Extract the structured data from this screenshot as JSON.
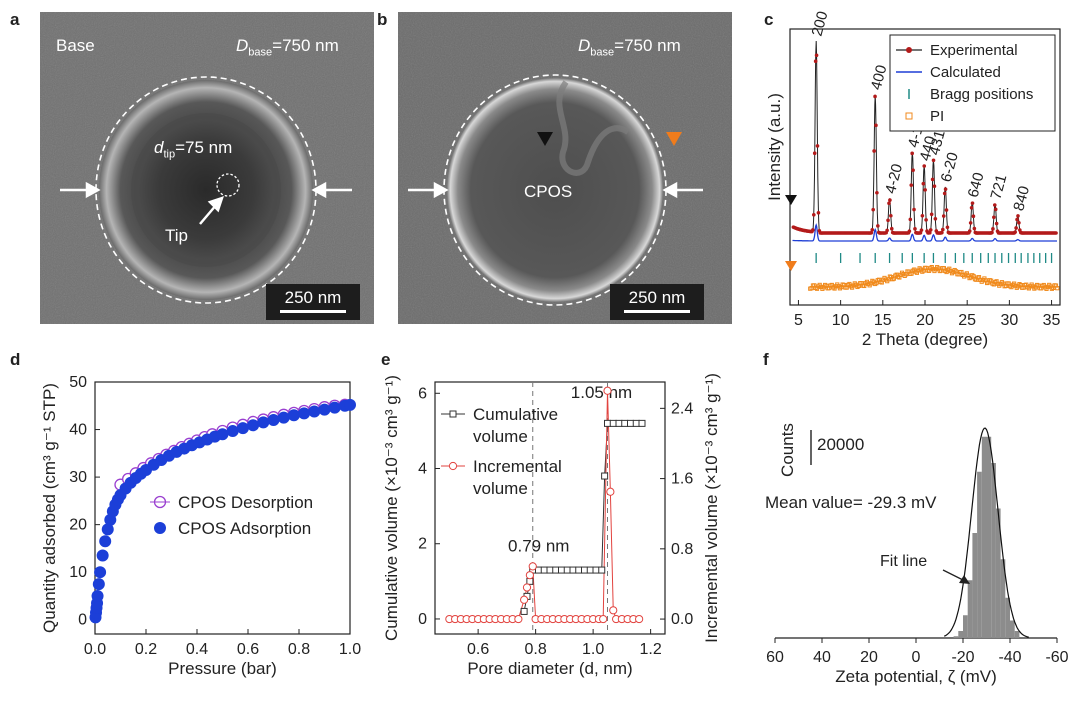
{
  "panels": {
    "a": {
      "letter": "a",
      "label_base": "Base",
      "dbase_sym": "D",
      "dbase_sub": "base",
      "dbase_val": "=750 nm",
      "dtip_sym": "d",
      "dtip_sub": "tip",
      "dtip_val": "=75 nm",
      "tip_label": "Tip",
      "scalebar": "250 nm"
    },
    "b": {
      "letter": "b",
      "dbase_sym": "D",
      "dbase_sub": "base",
      "dbase_val": "=750 nm",
      "cpos_label": "CPOS",
      "scalebar": "250 nm"
    },
    "c": {
      "letter": "c"
    },
    "d": {
      "letter": "d"
    },
    "e": {
      "letter": "e"
    },
    "f": {
      "letter": "f"
    }
  },
  "colors": {
    "xrd_exp": "#b31a1a",
    "xrd_calc": "#1f3fd6",
    "bragg": "#1f8a86",
    "pi": "#f08a1c",
    "desorption": "#9a3fd0",
    "adsorption": "#1c3fd8",
    "cumulative": "#333333",
    "incremental": "#e2433f",
    "hist": "#8c8c8c",
    "marker_black": "#111111",
    "marker_orange": "#f07c1c"
  },
  "chart_data": [
    {
      "id": "c",
      "type": "line",
      "title": "",
      "xlabel": "2 Theta (degree)",
      "ylabel": "Intensity (a.u.)",
      "xlim": [
        4,
        36
      ],
      "xticks": [
        5,
        10,
        15,
        20,
        25,
        30,
        35
      ],
      "legend": [
        "Experimental",
        "Calculated",
        "Bragg positions",
        "PI"
      ],
      "legend_position": "top-right",
      "peaks": [
        {
          "label": "200",
          "x": 7.1,
          "h": 1.0
        },
        {
          "label": "400",
          "x": 14.1,
          "h": 0.72
        },
        {
          "label": "4-20",
          "x": 15.8,
          "h": 0.18
        },
        {
          "label": "4-11",
          "x": 18.5,
          "h": 0.42
        },
        {
          "label": "440",
          "x": 19.9,
          "h": 0.35
        },
        {
          "label": "431",
          "x": 21.0,
          "h": 0.38
        },
        {
          "label": "6-20",
          "x": 22.4,
          "h": 0.24
        },
        {
          "label": "640",
          "x": 25.6,
          "h": 0.16
        },
        {
          "label": "721",
          "x": 28.3,
          "h": 0.15
        },
        {
          "label": "840",
          "x": 31.0,
          "h": 0.09
        }
      ],
      "bragg_positions": [
        7.1,
        10.0,
        12.3,
        14.1,
        15.8,
        17.3,
        18.5,
        19.9,
        21.0,
        22.4,
        23.6,
        24.6,
        25.6,
        26.6,
        27.5,
        28.3,
        29.1,
        29.9,
        30.7,
        31.4,
        32.2,
        32.9,
        33.6,
        34.3,
        35.0
      ],
      "pi_hump": {
        "center": 21,
        "width": 6,
        "height": 0.18
      }
    },
    {
      "id": "d",
      "type": "scatter",
      "xlabel": "Pressure (bar)",
      "ylabel": "Quantity adsorbed (cm³ g⁻¹ STP)",
      "xlim": [
        0,
        1.0
      ],
      "ylim": [
        -3,
        50
      ],
      "xticks": [
        0.0,
        0.2,
        0.4,
        0.6,
        0.8,
        1.0
      ],
      "yticks": [
        0,
        10,
        20,
        30,
        40,
        50
      ],
      "legend_position": "middle-right",
      "series": [
        {
          "name": "CPOS Desorption",
          "style": "open",
          "x": [
            0.1,
            0.13,
            0.16,
            0.19,
            0.22,
            0.25,
            0.28,
            0.31,
            0.34,
            0.37,
            0.4,
            0.43,
            0.46,
            0.5,
            0.54,
            0.58,
            0.62,
            0.66,
            0.7,
            0.74,
            0.78,
            0.82,
            0.86,
            0.9,
            0.94,
            0.98
          ],
          "y": [
            28.4,
            29.6,
            30.8,
            31.9,
            32.9,
            33.8,
            34.7,
            35.5,
            36.3,
            37.0,
            37.7,
            38.4,
            39.0,
            39.7,
            40.4,
            41.0,
            41.6,
            42.1,
            42.6,
            43.1,
            43.5,
            43.9,
            44.3,
            44.7,
            45.0,
            45.2
          ]
        },
        {
          "name": "CPOS Adsorption",
          "style": "filled",
          "x": [
            0.002,
            0.004,
            0.006,
            0.008,
            0.01,
            0.015,
            0.02,
            0.03,
            0.04,
            0.05,
            0.06,
            0.07,
            0.08,
            0.09,
            0.1,
            0.12,
            0.14,
            0.16,
            0.18,
            0.2,
            0.23,
            0.26,
            0.29,
            0.32,
            0.35,
            0.38,
            0.41,
            0.44,
            0.47,
            0.5,
            0.54,
            0.58,
            0.62,
            0.66,
            0.7,
            0.74,
            0.78,
            0.82,
            0.86,
            0.9,
            0.94,
            0.98,
            1.0
          ],
          "y": [
            0.5,
            1.5,
            2.5,
            3.5,
            5.0,
            7.5,
            10.0,
            13.5,
            16.5,
            19.0,
            21.0,
            22.8,
            24.2,
            25.3,
            26.2,
            27.6,
            28.8,
            29.8,
            30.7,
            31.5,
            32.6,
            33.6,
            34.5,
            35.3,
            36.0,
            36.7,
            37.3,
            37.9,
            38.5,
            39.0,
            39.7,
            40.3,
            40.9,
            41.5,
            42.0,
            42.5,
            43.0,
            43.4,
            43.8,
            44.2,
            44.6,
            45.0,
            45.2
          ]
        }
      ]
    },
    {
      "id": "e",
      "type": "line",
      "xlabel": "Pore diameter (d, nm)",
      "ylabel_left": "Cumulative volume (×10⁻³ cm³ g⁻¹)",
      "ylabel_right": "Incremental volume (×10⁻³ cm³ g⁻¹)",
      "xlim": [
        0.45,
        1.25
      ],
      "ylim_left": [
        -0.4,
        6.3
      ],
      "ylim_right": [
        -0.17,
        2.7
      ],
      "xticks": [
        0.6,
        0.8,
        1.0,
        1.2
      ],
      "yticks_left": [
        0,
        2,
        4,
        6
      ],
      "yticks_right": [
        0.0,
        0.8,
        1.6,
        2.4
      ],
      "annotations": [
        {
          "text": "0.79 nm",
          "x": 0.79
        },
        {
          "text": "1.05 nm",
          "x": 1.05
        }
      ],
      "legend": [
        "Cumulative volume",
        "Incremental volume"
      ],
      "legend_labels": [
        [
          "Cumulative",
          "volume"
        ],
        [
          "Incremental",
          "volume"
        ]
      ],
      "legend_position": "top-left",
      "series": [
        {
          "name": "Cumulative volume",
          "axis": "left",
          "x": [
            0.76,
            0.77,
            0.78,
            0.79,
            0.81,
            0.83,
            0.85,
            0.87,
            0.89,
            0.91,
            0.93,
            0.95,
            0.97,
            0.99,
            1.01,
            1.03,
            1.04,
            1.05,
            1.07,
            1.09,
            1.11,
            1.13,
            1.15,
            1.17
          ],
          "y": [
            0.2,
            0.6,
            1.0,
            1.3,
            1.3,
            1.3,
            1.3,
            1.3,
            1.3,
            1.3,
            1.3,
            1.3,
            1.3,
            1.3,
            1.3,
            1.3,
            3.8,
            5.2,
            5.2,
            5.2,
            5.2,
            5.2,
            5.2,
            5.2
          ]
        },
        {
          "name": "Incremental volume",
          "axis": "right",
          "x": [
            0.5,
            0.52,
            0.54,
            0.56,
            0.58,
            0.6,
            0.62,
            0.64,
            0.66,
            0.68,
            0.7,
            0.72,
            0.74,
            0.76,
            0.77,
            0.78,
            0.79,
            0.8,
            0.82,
            0.84,
            0.86,
            0.88,
            0.9,
            0.92,
            0.94,
            0.96,
            0.98,
            1.0,
            1.02,
            1.035,
            1.05,
            1.06,
            1.07,
            1.08,
            1.1,
            1.12,
            1.14,
            1.16
          ],
          "y": [
            0,
            0,
            0,
            0,
            0,
            0,
            0,
            0,
            0,
            0,
            0,
            0,
            0,
            0.22,
            0.36,
            0.5,
            0.6,
            0,
            0,
            0,
            0,
            0,
            0,
            0,
            0,
            0,
            0,
            0,
            0,
            0,
            2.6,
            1.45,
            0.1,
            0,
            0,
            0,
            0,
            0
          ]
        }
      ]
    },
    {
      "id": "f",
      "type": "bar",
      "xlabel": "Zeta potential, ζ (mV)",
      "ylabel": "Counts",
      "xlim": [
        60,
        -60
      ],
      "xticks": [
        60,
        40,
        20,
        0,
        -20,
        -40,
        -60
      ],
      "scale_label": "20000",
      "scale_value": 20000,
      "mean_label": "Mean value= -29.3 mV",
      "fit_label": "Fit line",
      "bin_edges": [
        -16,
        -18,
        -20,
        -22,
        -24,
        -26,
        -28,
        -30,
        -32,
        -34,
        -36,
        -38,
        -40,
        -42,
        -44
      ],
      "counts": [
        1000,
        4000,
        13000,
        33000,
        60000,
        95000,
        115000,
        115000,
        100000,
        74000,
        45000,
        23000,
        10000,
        4000
      ],
      "fit": {
        "mean": -29.3,
        "sigma": 5.6,
        "peak": 120000
      }
    }
  ]
}
